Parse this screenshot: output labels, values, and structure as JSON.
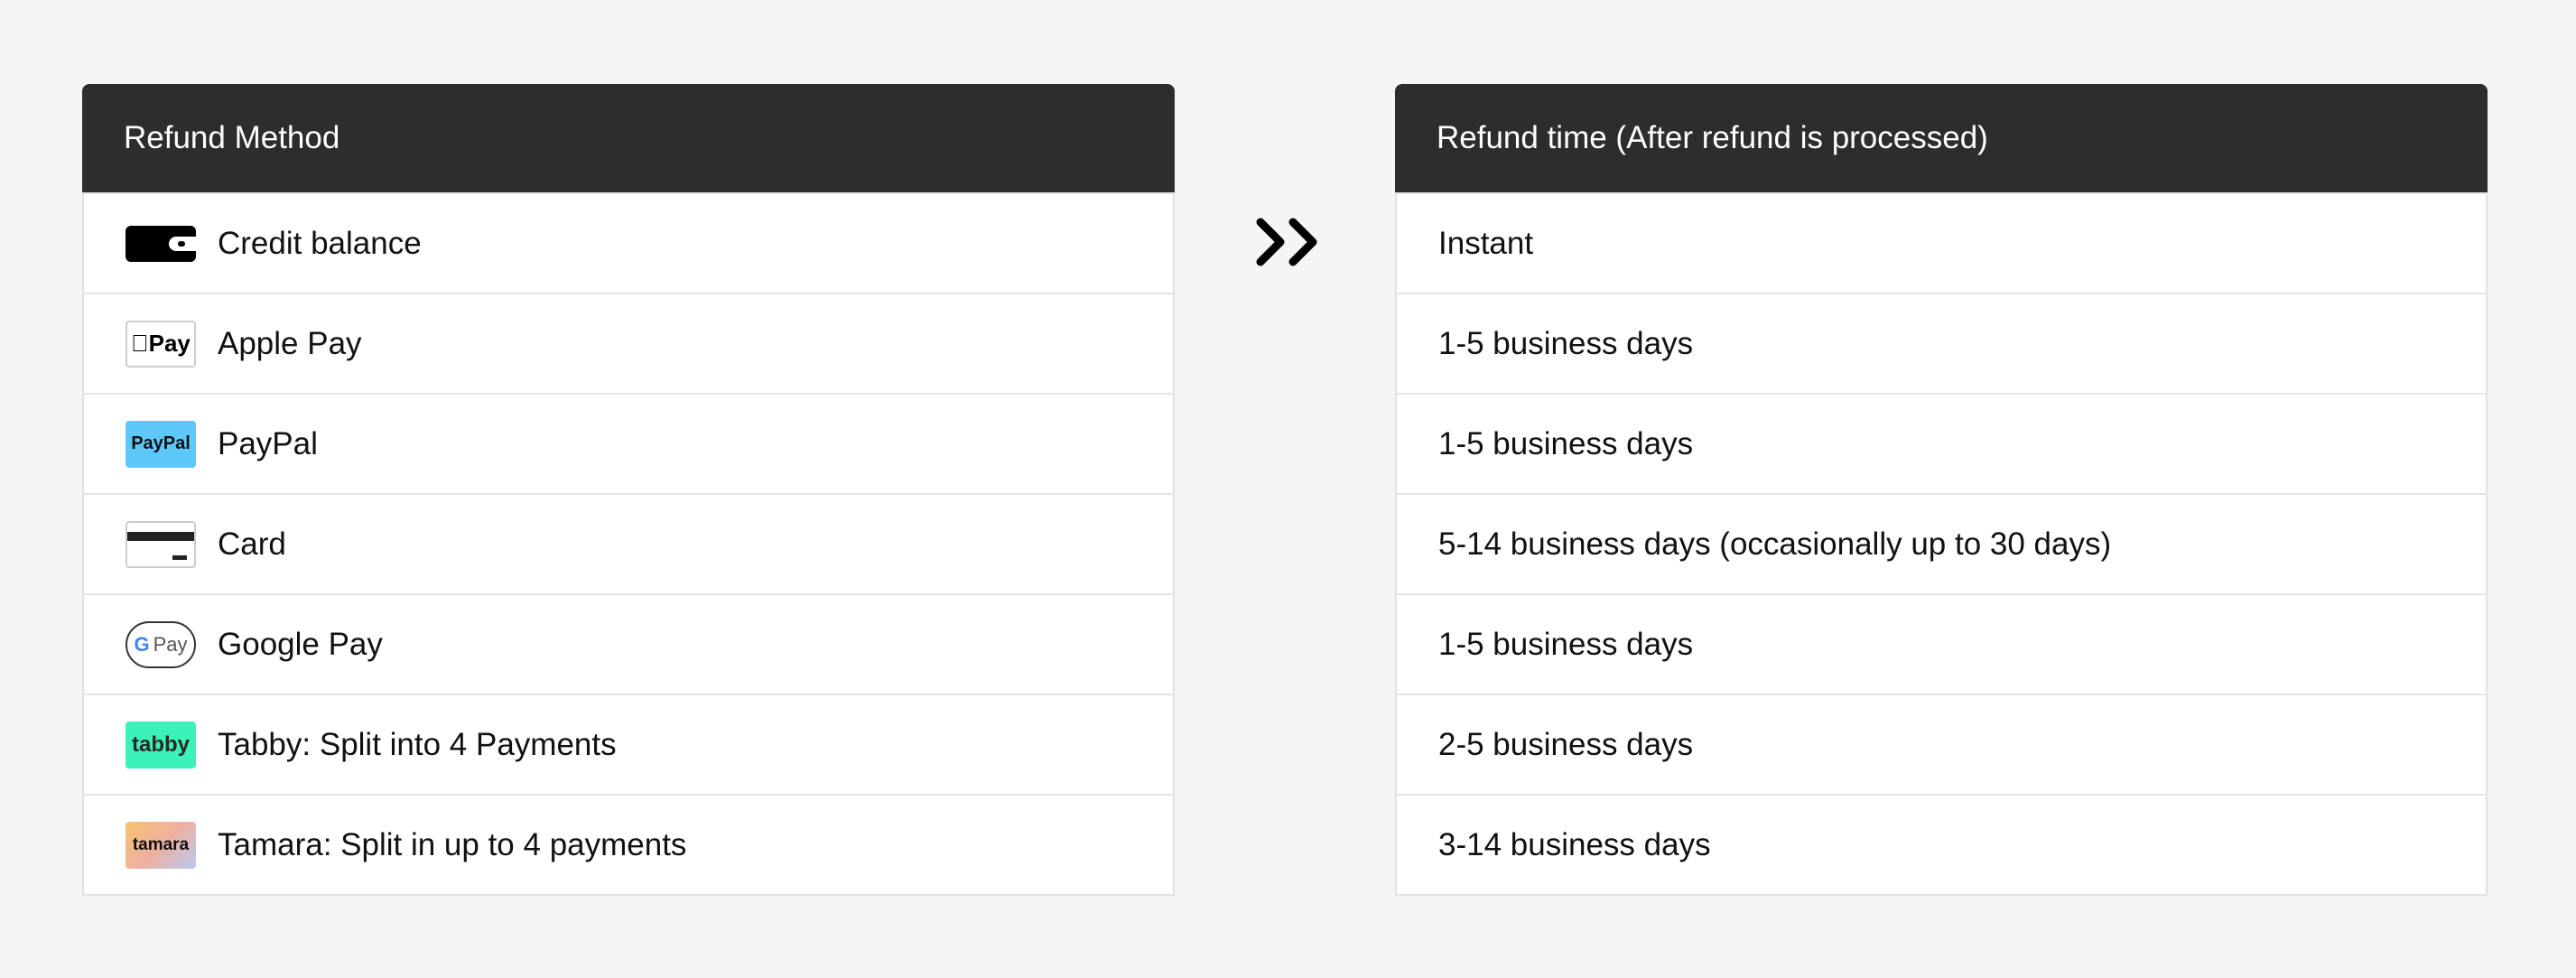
{
  "left": {
    "header": "Refund Method",
    "rows": [
      {
        "label": "Credit balance",
        "icon": "wallet-icon",
        "icon_text": ""
      },
      {
        "label": "Apple Pay",
        "icon": "apple-pay-icon",
        "icon_text": "Pay"
      },
      {
        "label": "PayPal",
        "icon": "paypal-icon",
        "icon_text": "PayPal"
      },
      {
        "label": "Card",
        "icon": "card-icon",
        "icon_text": ""
      },
      {
        "label": "Google Pay",
        "icon": "google-pay-icon",
        "icon_text": "Pay"
      },
      {
        "label": "Tabby: Split into 4 Payments",
        "icon": "tabby-icon",
        "icon_text": "tabby"
      },
      {
        "label": "Tamara: Split in up to 4 payments",
        "icon": "tamara-icon",
        "icon_text": "tamara"
      }
    ]
  },
  "arrow_icon": "double-chevron-right-icon",
  "right": {
    "header": "Refund time (After refund is processed)",
    "rows": [
      "Instant",
      "1-5 business days",
      "1-5 business days",
      "5-14 business days (occasionally up to 30 days)",
      "1-5 business days",
      "2-5 business days",
      "3-14 business days"
    ]
  },
  "colors": {
    "header_bg": "#2d2d2d",
    "paypal": "#5fc8fb",
    "tabby": "#3bf2b8"
  }
}
